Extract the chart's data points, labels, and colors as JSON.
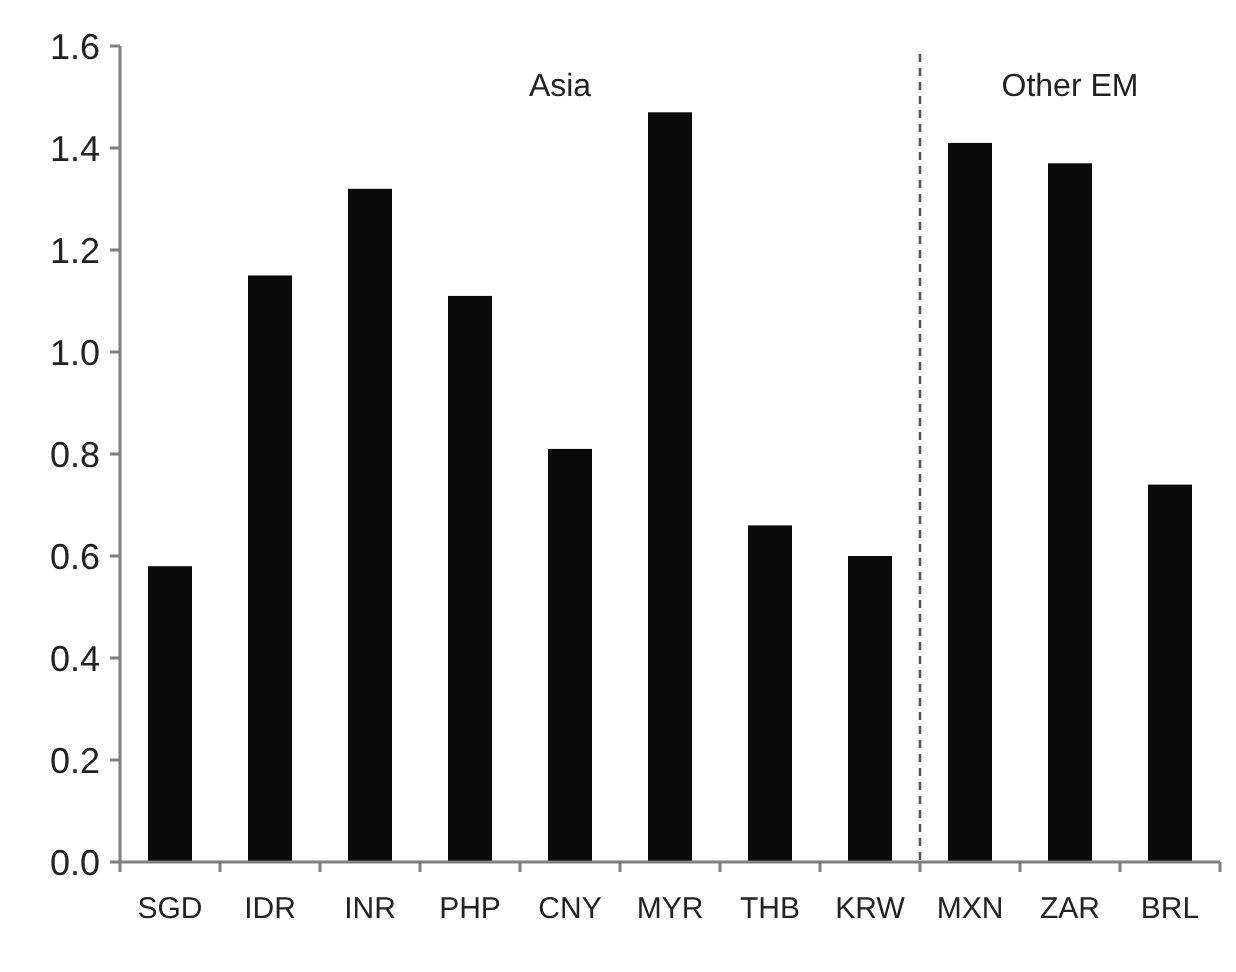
{
  "chart_data": {
    "type": "bar",
    "categories": [
      "SGD",
      "IDR",
      "INR",
      "PHP",
      "CNY",
      "MYR",
      "THB",
      "KRW",
      "MXN",
      "ZAR",
      "BRL"
    ],
    "values": [
      0.58,
      1.15,
      1.32,
      1.11,
      0.81,
      1.47,
      0.66,
      0.6,
      1.41,
      1.37,
      0.74
    ],
    "color": "#0a0a0a",
    "ylim": [
      0,
      1.6
    ],
    "yticks": [
      {
        "value": 0,
        "label": "0.0"
      },
      {
        "value": 0.2,
        "label": "0.2"
      },
      {
        "value": 0.4,
        "label": "0.4"
      },
      {
        "value": 0.6,
        "label": "0.6"
      },
      {
        "value": 0.8,
        "label": "0.8"
      },
      {
        "value": 1,
        "label": "1.0"
      },
      {
        "value": 1.2,
        "label": "1.2"
      },
      {
        "value": 1.4,
        "label": "1.4"
      },
      {
        "value": 1.6,
        "label": "1.6"
      }
    ],
    "annotations": [
      "Asia",
      "Other EM"
    ]
  }
}
